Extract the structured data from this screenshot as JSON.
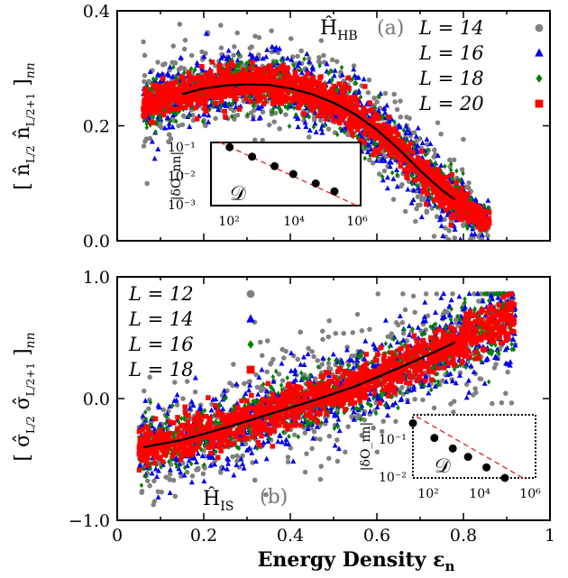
{
  "chart_data": [
    {
      "type": "scatter",
      "panel": "(a)",
      "model": "Ĥ_HB",
      "model_base": "Ĥ",
      "model_sub": "HB",
      "ylabel_lead": "[ n̂",
      "ylabel_mid": " n̂",
      "ylabel_tail": " ]",
      "ylabel_sub": "nn",
      "xlim": [
        0,
        1
      ],
      "ylim": [
        0,
        0.4
      ],
      "yticks": [
        "0.0",
        "0.2",
        "0.4"
      ],
      "legend_position": "top-right",
      "series": [
        {
          "name": "L = 14",
          "color": "#808080",
          "marker": "circle",
          "spread": 0.04
        },
        {
          "name": "L = 16",
          "color": "#0000ee",
          "marker": "triangle",
          "spread": 0.03
        },
        {
          "name": "L = 18",
          "color": "#008000",
          "marker": "diamond",
          "spread": 0.022
        },
        {
          "name": "L = 20",
          "color": "#ff0000",
          "marker": "square",
          "spread": 0.016
        }
      ],
      "x_range": [
        0.06,
        0.86
      ],
      "mean_curve": {
        "color": "#000000",
        "x": [
          0.15,
          0.2,
          0.25,
          0.3,
          0.35,
          0.4,
          0.45,
          0.5,
          0.55,
          0.6,
          0.65,
          0.7,
          0.75,
          0.78
        ],
        "y": [
          0.255,
          0.265,
          0.27,
          0.272,
          0.271,
          0.265,
          0.255,
          0.24,
          0.22,
          0.193,
          0.16,
          0.122,
          0.088,
          0.072
        ]
      },
      "inset": {
        "ylabel": "|δO_nn|",
        "label": "𝒟",
        "x_ticks": [
          "10²",
          "10⁴",
          "10⁶"
        ],
        "y_ticks": [
          "10⁻¹",
          "10⁻²",
          "10⁻³"
        ],
        "points": [
          [
            2.5,
            -1.15
          ],
          [
            3.1,
            -1.45
          ],
          [
            3.7,
            -1.75
          ],
          [
            4.2,
            -2.0
          ],
          [
            4.8,
            -2.3
          ],
          [
            5.3,
            -2.55
          ]
        ]
      }
    },
    {
      "type": "scatter",
      "panel": "(b)",
      "model": "Ĥ_IS",
      "model_base": "Ĥ",
      "model_sub": "IS",
      "ylabel_lead": "[ σ̂",
      "ylabel_mid": " σ̂",
      "ylabel_tail": " ]",
      "ylabel_sub": "nn",
      "xlim": [
        0,
        1
      ],
      "ylim": [
        -1,
        1
      ],
      "yticks": [
        "−1.0",
        "0.0",
        "1.0"
      ],
      "legend_position": "top-left",
      "series": [
        {
          "name": "L = 12",
          "color": "#808080",
          "marker": "circle",
          "spread": 0.24
        },
        {
          "name": "L = 14",
          "color": "#0000ee",
          "marker": "triangle",
          "spread": 0.17
        },
        {
          "name": "L = 16",
          "color": "#008000",
          "marker": "diamond",
          "spread": 0.12
        },
        {
          "name": "L = 18",
          "color": "#ff0000",
          "marker": "square",
          "spread": 0.08
        }
      ],
      "x_range": [
        0.05,
        0.92
      ],
      "mean_curve": {
        "color": "#000000",
        "x": [
          0.06,
          0.15,
          0.25,
          0.35,
          0.45,
          0.55,
          0.65,
          0.72,
          0.78
        ],
        "y": [
          -0.4,
          -0.34,
          -0.24,
          -0.13,
          -0.02,
          0.1,
          0.25,
          0.36,
          0.46
        ]
      },
      "inset": {
        "ylabel": "|δO_nn|",
        "label": "𝒟",
        "x_ticks": [
          "10²",
          "10⁴",
          "10⁶"
        ],
        "y_ticks": [
          "10⁻¹",
          "10⁻²"
        ],
        "points": [
          [
            2.0,
            -0.7
          ],
          [
            2.7,
            -1.05
          ],
          [
            3.3,
            -1.3
          ],
          [
            3.8,
            -1.5
          ],
          [
            4.4,
            -1.75
          ],
          [
            5.0,
            -2.0
          ]
        ]
      }
    }
  ],
  "xticks": [
    "0",
    "0.2",
    "0.4",
    "0.6",
    "0.8",
    "1"
  ],
  "xlabel": "Energy Density ε",
  "xlabel_sub": "n"
}
